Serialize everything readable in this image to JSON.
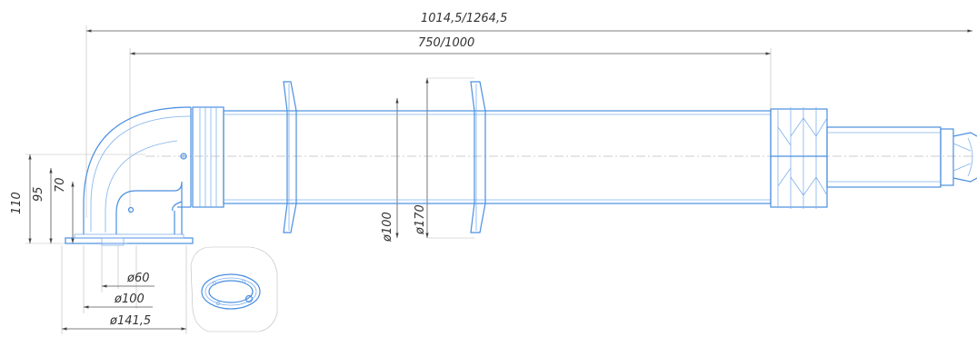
{
  "dimensions": {
    "overall_length": "1014,5/1264,5",
    "pipe_length": "750/1000",
    "height_110": "110",
    "height_95": "95",
    "height_70": "70",
    "diameter_inner": "ø100",
    "diameter_flange": "ø170",
    "base_d60": "ø60",
    "base_d100": "ø100",
    "base_d141": "ø141,5"
  },
  "colors": {
    "outline": "#4a8fe0",
    "dimension": "#555555"
  }
}
